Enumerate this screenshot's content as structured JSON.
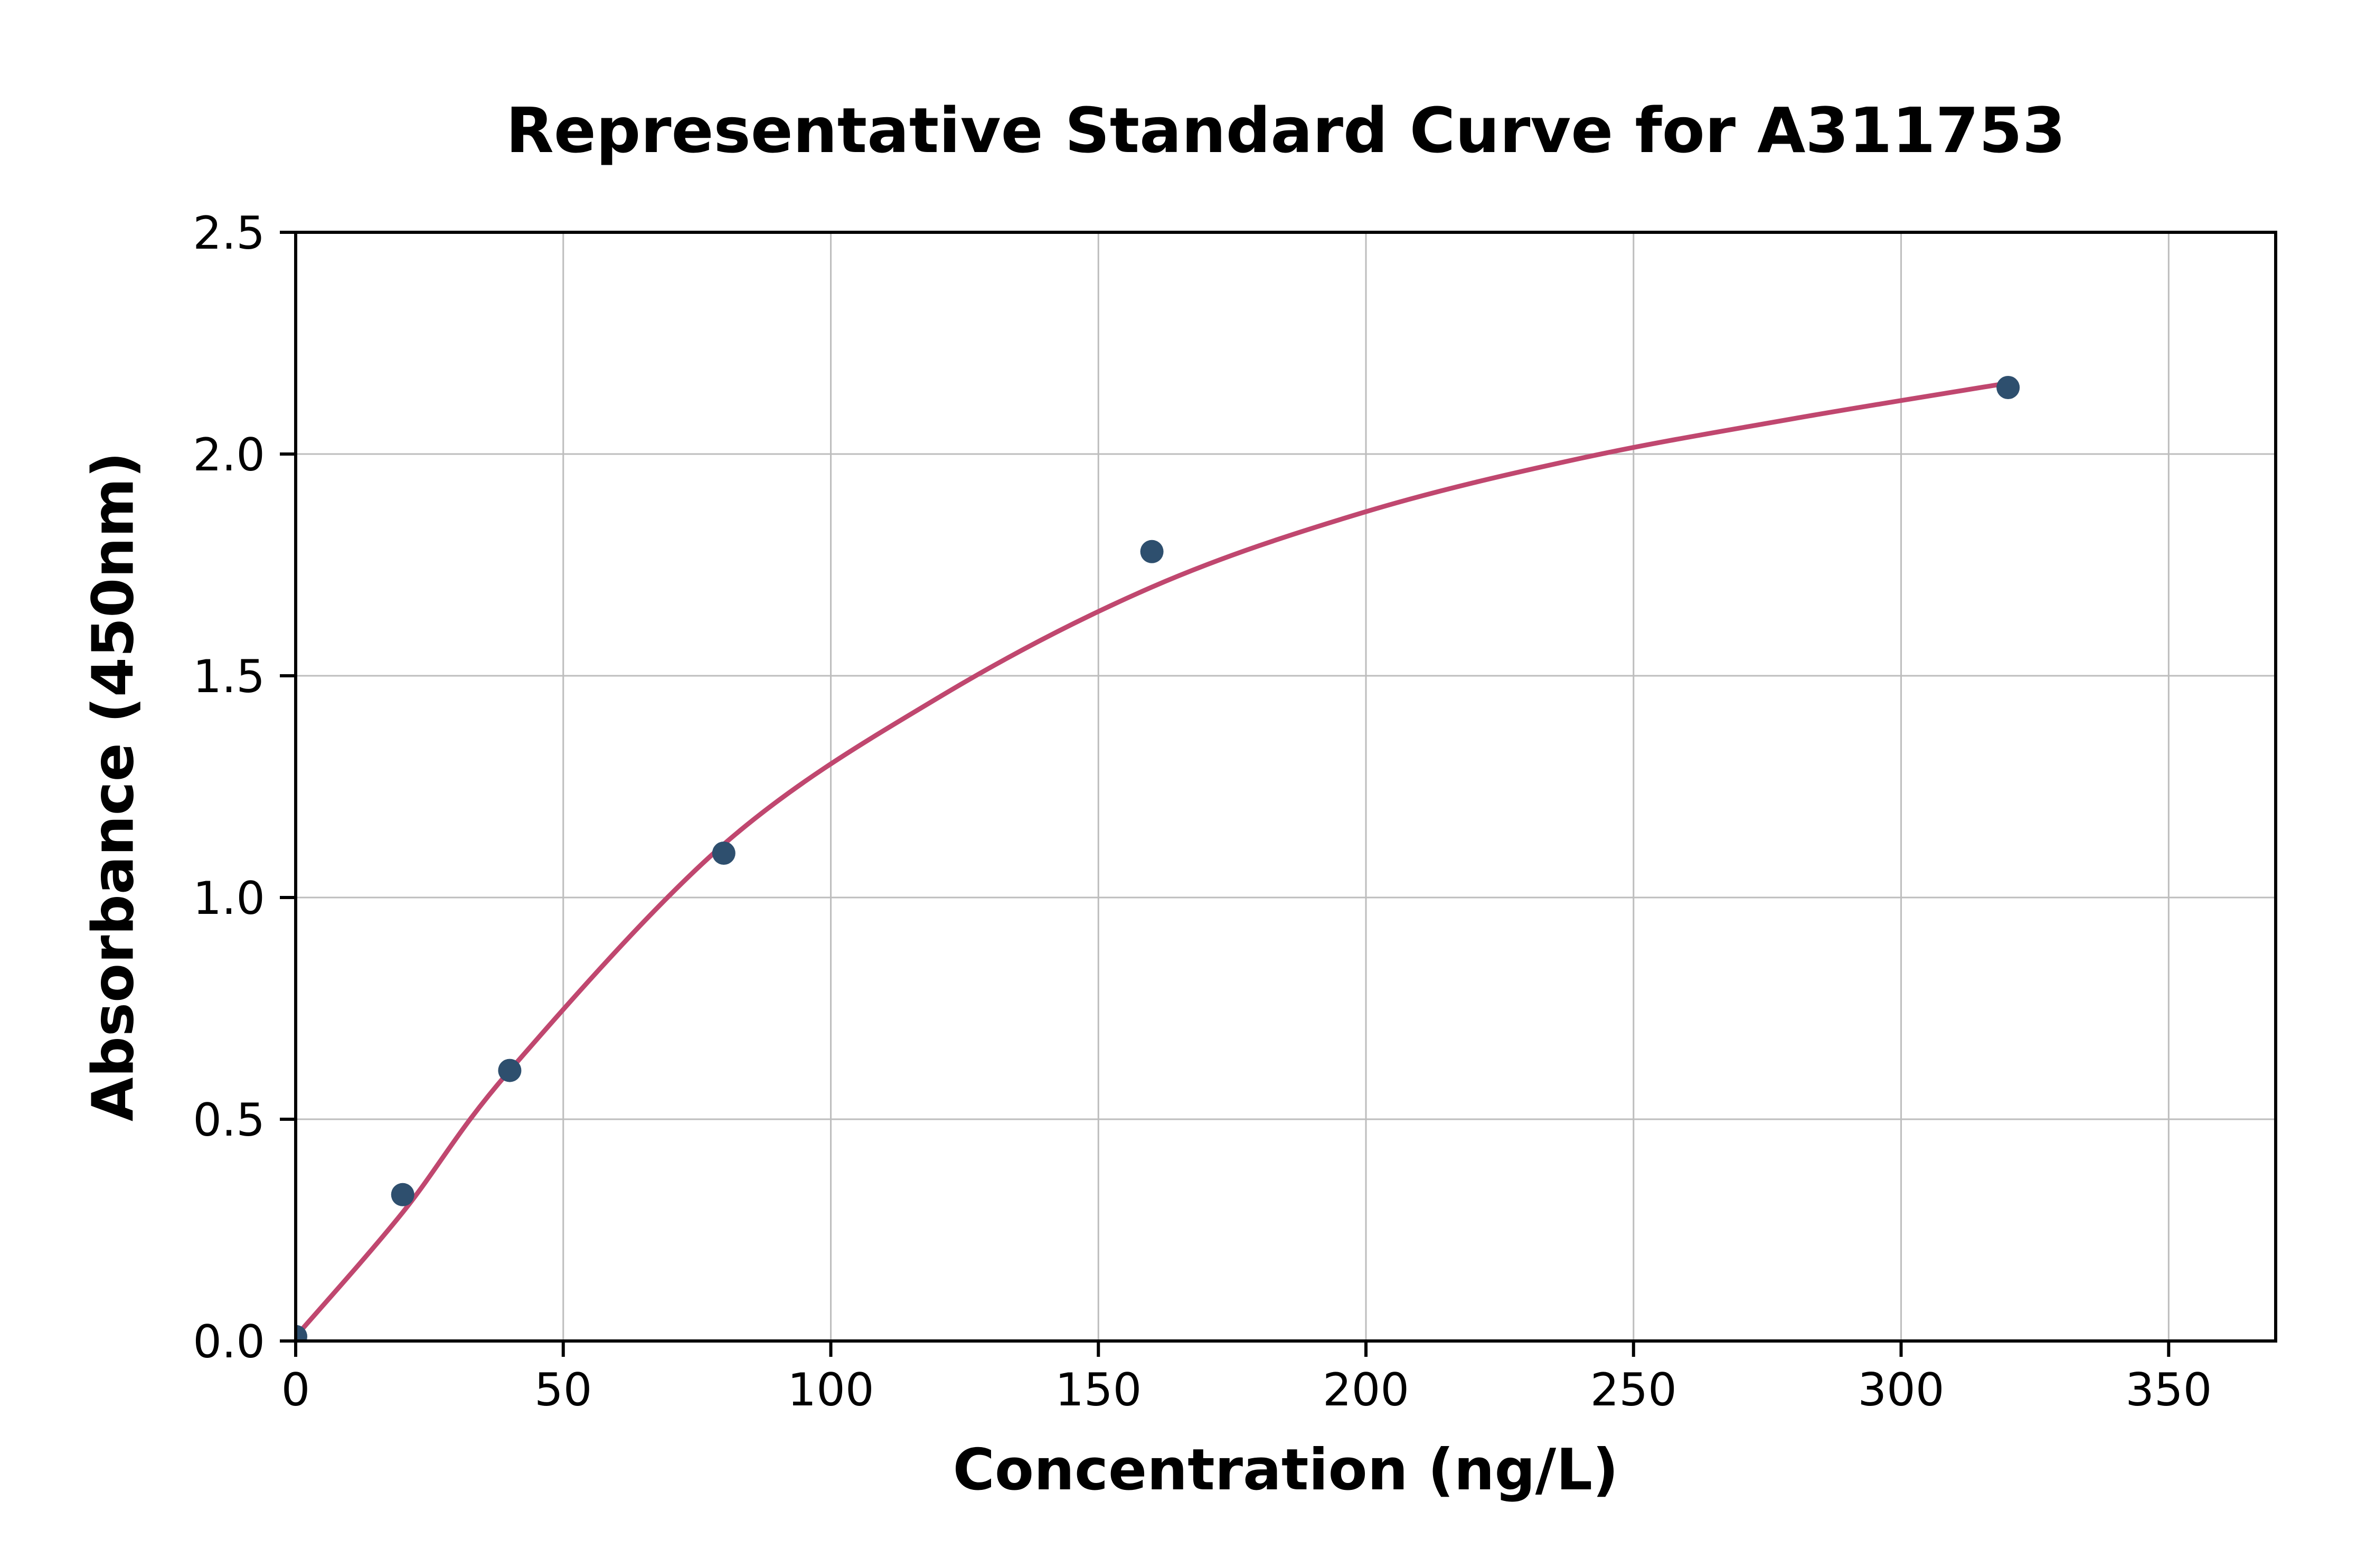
{
  "chart_data": {
    "type": "scatter",
    "title": "Representative Standard Curve for A311753",
    "xlabel": "Concentration (ng/L)",
    "ylabel": "Absorbance (450nm)",
    "xlim": [
      0,
      370
    ],
    "ylim": [
      0,
      2.5
    ],
    "x_ticks": [
      0,
      50,
      100,
      150,
      200,
      250,
      300,
      350
    ],
    "x_tick_labels": [
      "0",
      "50",
      "100",
      "150",
      "200",
      "250",
      "300",
      "350"
    ],
    "y_ticks": [
      0.0,
      0.5,
      1.0,
      1.5,
      2.0,
      2.5
    ],
    "y_tick_labels": [
      "0.0",
      "0.5",
      "1.0",
      "1.5",
      "2.0",
      "2.5"
    ],
    "grid": true,
    "legend": "none",
    "points": [
      {
        "x": 0,
        "y": 0.01
      },
      {
        "x": 20,
        "y": 0.33
      },
      {
        "x": 40,
        "y": 0.61
      },
      {
        "x": 80,
        "y": 1.1
      },
      {
        "x": 160,
        "y": 1.78
      },
      {
        "x": 320,
        "y": 2.15
      }
    ],
    "fit_curve": [
      {
        "x": 0,
        "y": 0.01
      },
      {
        "x": 20,
        "y": 0.29
      },
      {
        "x": 40,
        "y": 0.61
      },
      {
        "x": 80,
        "y": 1.12
      },
      {
        "x": 120,
        "y": 1.45
      },
      {
        "x": 160,
        "y": 1.7
      },
      {
        "x": 200,
        "y": 1.87
      },
      {
        "x": 240,
        "y": 1.99
      },
      {
        "x": 280,
        "y": 2.08
      },
      {
        "x": 320,
        "y": 2.16
      }
    ],
    "colors": {
      "point": "#2e4f6e",
      "curve": "#c0476f",
      "grid": "#bdbdbd",
      "frame": "#000000",
      "tick_text": "#000000",
      "background": "#ffffff"
    }
  }
}
